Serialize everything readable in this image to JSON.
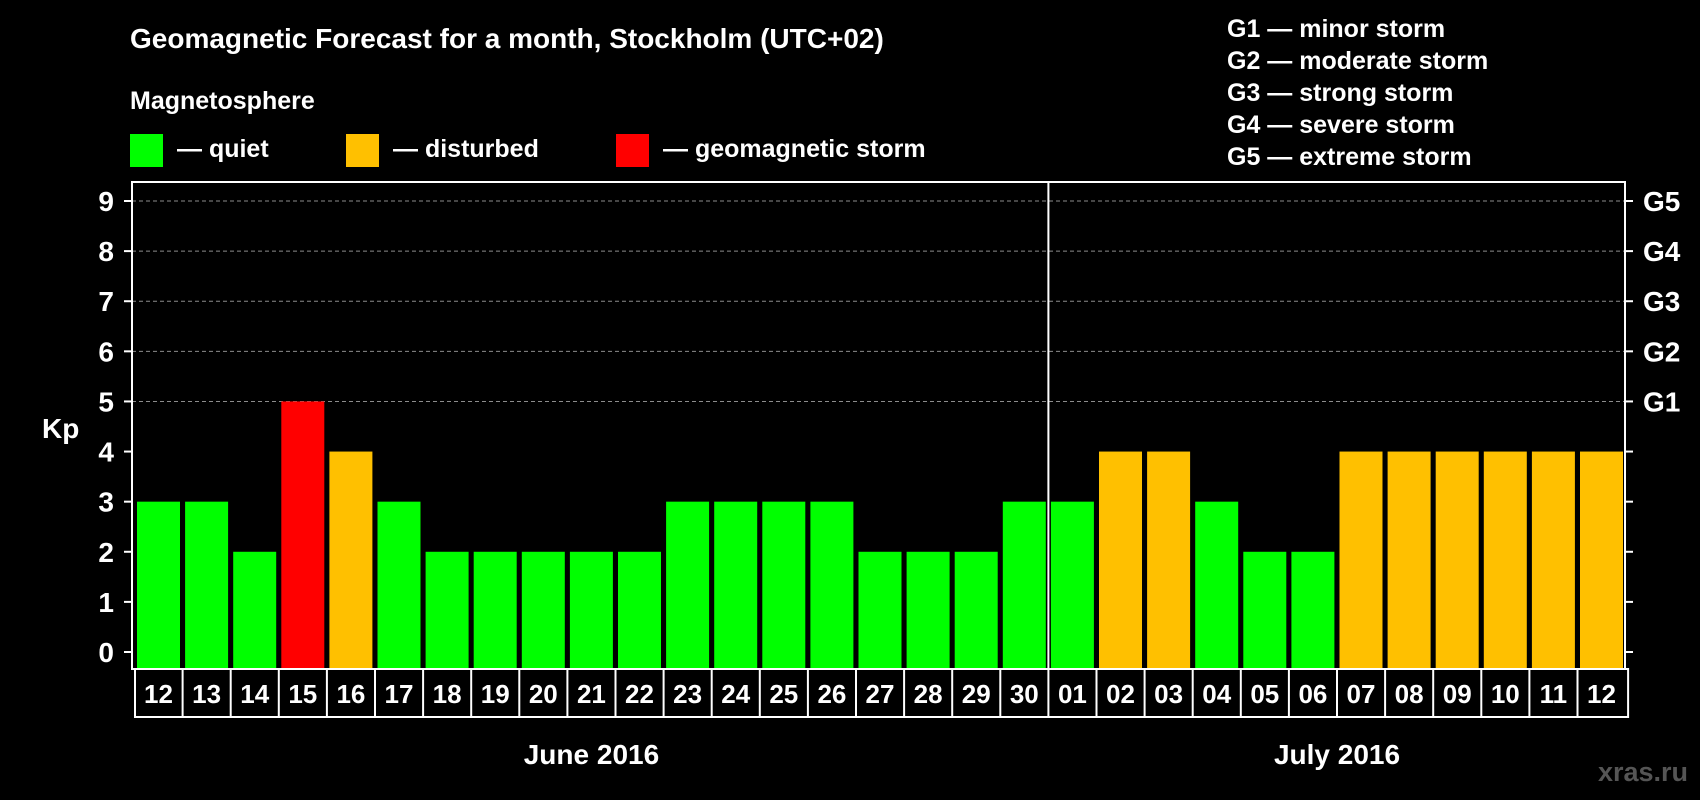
{
  "chart_data": {
    "type": "bar",
    "title": "Geomagnetic Forecast for a month, Stockholm (UTC+02)",
    "subtitle": "Magnetosphere",
    "ylabel": "Kp",
    "ylim": [
      0,
      9
    ],
    "yticks": [
      "0",
      "1",
      "2",
      "3",
      "4",
      "5",
      "6",
      "7",
      "8",
      "9"
    ],
    "right_axis_labels": [
      {
        "kp": 5,
        "label": "G1"
      },
      {
        "kp": 6,
        "label": "G2"
      },
      {
        "kp": 7,
        "label": "G3"
      },
      {
        "kp": 8,
        "label": "G4"
      },
      {
        "kp": 9,
        "label": "G5"
      }
    ],
    "legend": [
      {
        "label": "— quiet",
        "color": "#00ff00"
      },
      {
        "label": "— disturbed",
        "color": "#ffc000"
      },
      {
        "label": "— geomagnetic storm",
        "color": "#ff0000"
      }
    ],
    "storm_scale": [
      "G1 — minor storm",
      "G2 — moderate storm",
      "G3 — strong storm",
      "G4 — severe storm",
      "G5 — extreme storm"
    ],
    "months": [
      {
        "label": "June 2016",
        "days": 19
      },
      {
        "label": "July 2016",
        "days": 12
      }
    ],
    "categories": [
      "12",
      "13",
      "14",
      "15",
      "16",
      "17",
      "18",
      "19",
      "20",
      "21",
      "22",
      "23",
      "24",
      "25",
      "26",
      "27",
      "28",
      "29",
      "30",
      "01",
      "02",
      "03",
      "04",
      "05",
      "06",
      "07",
      "08",
      "09",
      "10",
      "11",
      "12"
    ],
    "values": [
      3,
      3,
      2,
      5,
      4,
      3,
      2,
      2,
      2,
      2,
      2,
      3,
      3,
      3,
      3,
      2,
      2,
      2,
      3,
      3,
      4,
      4,
      3,
      2,
      2,
      4,
      4,
      4,
      4,
      4,
      4
    ],
    "colors": {
      "quiet": "#00ff00",
      "disturbed": "#ffc000",
      "storm": "#ff0000"
    },
    "grid": true
  },
  "watermark": "xras.ru"
}
